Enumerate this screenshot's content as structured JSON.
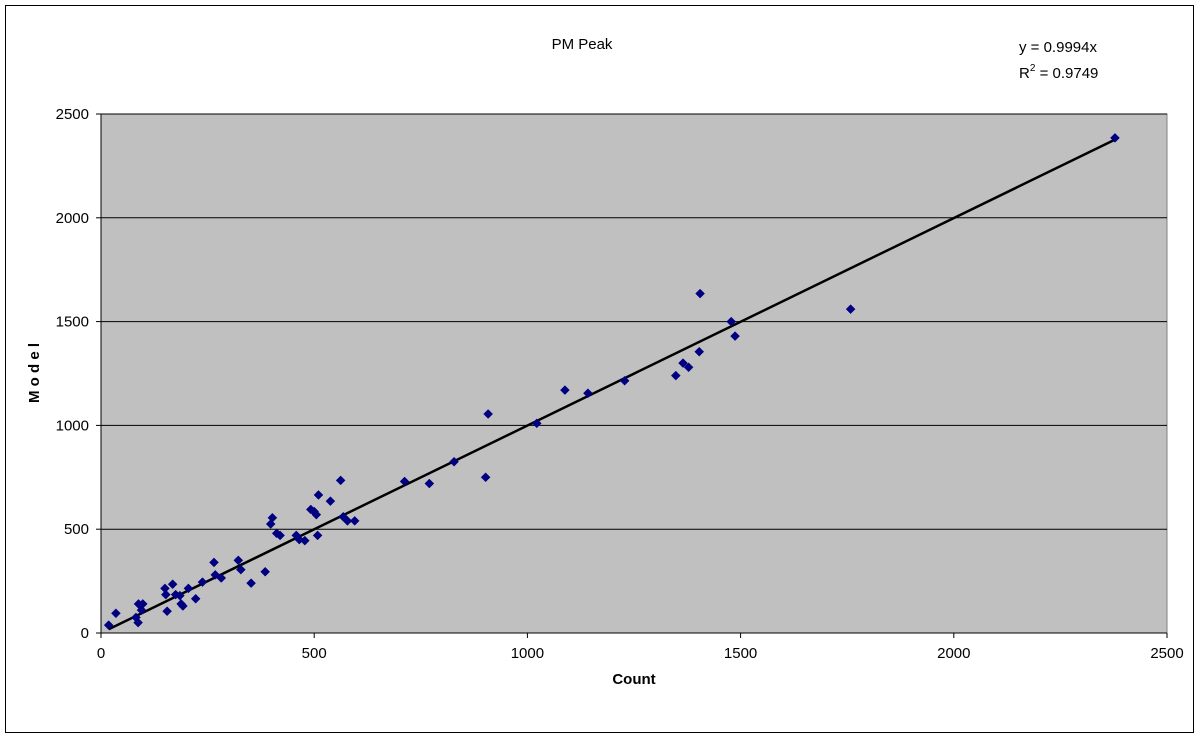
{
  "chart_data": {
    "type": "scatter",
    "title": "PM Peak",
    "xlabel": "Count",
    "ylabel": "M o d e l",
    "xlim": [
      0,
      2500
    ],
    "ylim": [
      0,
      2500
    ],
    "x_ticks": [
      "0",
      "500",
      "1000",
      "1500",
      "2000",
      "2500"
    ],
    "y_ticks": [
      "0",
      "500",
      "1000",
      "1500",
      "2000",
      "2500"
    ],
    "grid": "horizontal",
    "plot_background": "#c0c0c0",
    "marker_color": "#000080",
    "trendline": {
      "slope": 0.9994,
      "equation_label": "y = 0.9994x",
      "r2_prefix": "R",
      "r2_sup": "2",
      "r2_value": " = 0.9749",
      "color": "#000000"
    },
    "points": [
      [
        18,
        38
      ],
      [
        35,
        95
      ],
      [
        82,
        75
      ],
      [
        87,
        50
      ],
      [
        88,
        140
      ],
      [
        95,
        110
      ],
      [
        98,
        140
      ],
      [
        150,
        215
      ],
      [
        152,
        185
      ],
      [
        155,
        105
      ],
      [
        168,
        235
      ],
      [
        175,
        185
      ],
      [
        185,
        180
      ],
      [
        188,
        140
      ],
      [
        192,
        130
      ],
      [
        205,
        215
      ],
      [
        222,
        165
      ],
      [
        238,
        245
      ],
      [
        265,
        340
      ],
      [
        268,
        280
      ],
      [
        282,
        265
      ],
      [
        322,
        350
      ],
      [
        328,
        305
      ],
      [
        352,
        240
      ],
      [
        385,
        295
      ],
      [
        398,
        525
      ],
      [
        402,
        555
      ],
      [
        412,
        480
      ],
      [
        420,
        470
      ],
      [
        458,
        470
      ],
      [
        465,
        450
      ],
      [
        478,
        445
      ],
      [
        492,
        595
      ],
      [
        500,
        585
      ],
      [
        505,
        570
      ],
      [
        508,
        470
      ],
      [
        510,
        665
      ],
      [
        538,
        635
      ],
      [
        562,
        735
      ],
      [
        568,
        560
      ],
      [
        578,
        540
      ],
      [
        595,
        540
      ],
      [
        712,
        730
      ],
      [
        770,
        720
      ],
      [
        828,
        825
      ],
      [
        902,
        750
      ],
      [
        908,
        1055
      ],
      [
        1022,
        1010
      ],
      [
        1088,
        1170
      ],
      [
        1142,
        1155
      ],
      [
        1228,
        1215
      ],
      [
        1348,
        1240
      ],
      [
        1365,
        1300
      ],
      [
        1378,
        1280
      ],
      [
        1403,
        1355
      ],
      [
        1405,
        1635
      ],
      [
        1478,
        1500
      ],
      [
        1487,
        1430
      ],
      [
        1758,
        1560
      ],
      [
        2378,
        2385
      ]
    ]
  }
}
